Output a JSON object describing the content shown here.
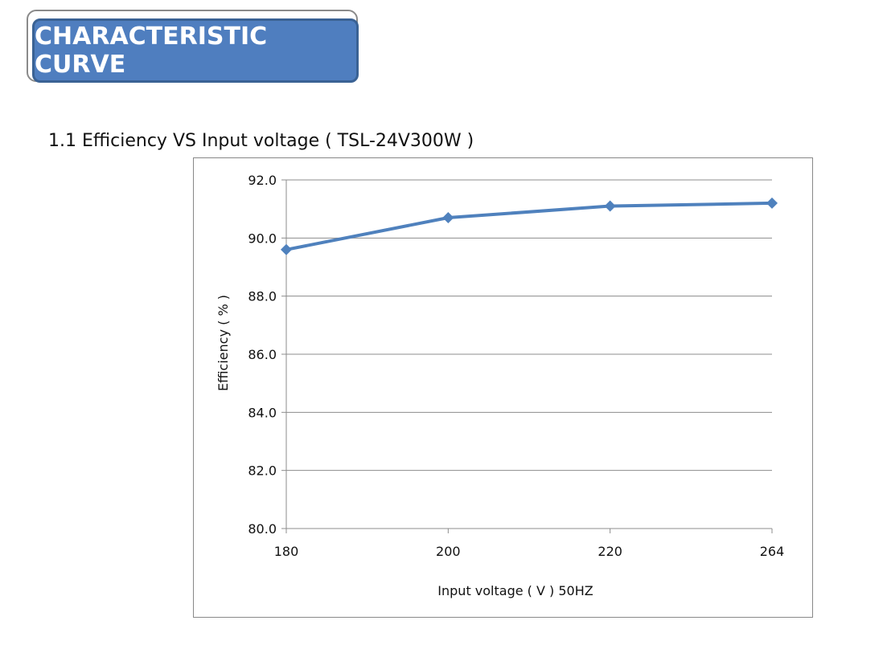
{
  "banner": {
    "title": "CHARACTERISTIC CURVE"
  },
  "section": {
    "title": "1.1 Efficiency VS Input voltage ( TSL-24V300W )"
  },
  "chart_data": {
    "type": "line",
    "categories": [
      "180",
      "200",
      "220",
      "264"
    ],
    "series": [
      {
        "values": [
          89.6,
          90.7,
          91.1,
          91.2
        ],
        "color": "#4f81bd",
        "marker": "diamond"
      }
    ],
    "xlabel": "Input voltage ( V ) 50HZ",
    "ylabel": "Efficiency ( % )",
    "ylim": [
      80.0,
      92.0
    ],
    "yticks": [
      "80.0",
      "82.0",
      "84.0",
      "86.0",
      "88.0",
      "90.0",
      "92.0"
    ],
    "grid": true
  }
}
